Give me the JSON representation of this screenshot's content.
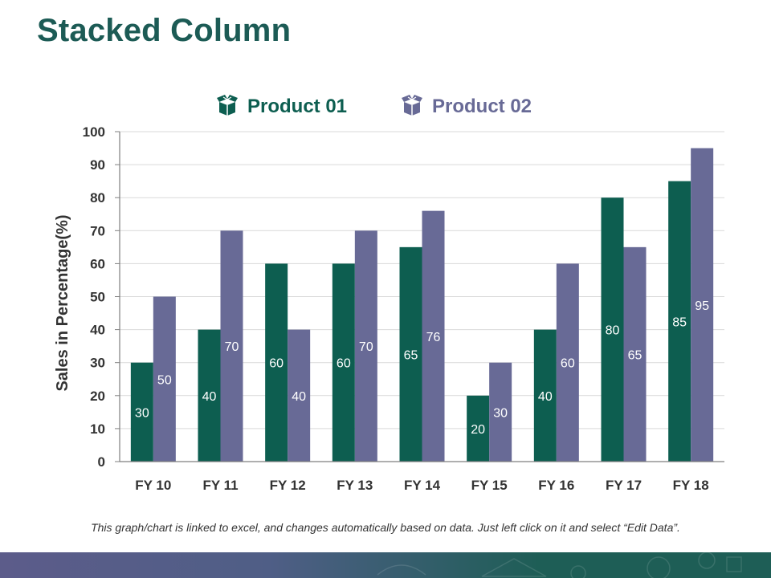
{
  "slide": {
    "title": "Stacked Column",
    "footnote": "This graph/chart is linked to excel, and changes automatically based on data. Just left click on it and select “Edit Data”."
  },
  "colors": {
    "title": "#1c5b55",
    "product01": "#0d5e50",
    "product02": "#686a96",
    "axis_text": "#333333",
    "gridline": "#d9d9d9",
    "band_left": "#5c5c8a",
    "band_right": "#1e5e56"
  },
  "icons": {
    "legend_product01": "box-icon",
    "legend_product02": "box-icon"
  },
  "chart_data": {
    "type": "bar",
    "title": "",
    "xlabel": "",
    "ylabel": "Sales in Percentage(%)",
    "ylim": [
      0,
      100
    ],
    "yticks": [
      0,
      10,
      20,
      30,
      40,
      50,
      60,
      70,
      80,
      90,
      100
    ],
    "grid": true,
    "legend_position": "top",
    "categories": [
      "FY 10",
      "FY 11",
      "FY 12",
      "FY 13",
      "FY 14",
      "FY 15",
      "FY 16",
      "FY 17",
      "FY 18"
    ],
    "series": [
      {
        "name": "Product 01",
        "color": "#0d5e50",
        "values": [
          30,
          40,
          60,
          60,
          65,
          20,
          40,
          80,
          85
        ]
      },
      {
        "name": "Product 02",
        "color": "#686a96",
        "values": [
          50,
          70,
          40,
          70,
          76,
          30,
          60,
          65,
          95
        ]
      }
    ]
  }
}
